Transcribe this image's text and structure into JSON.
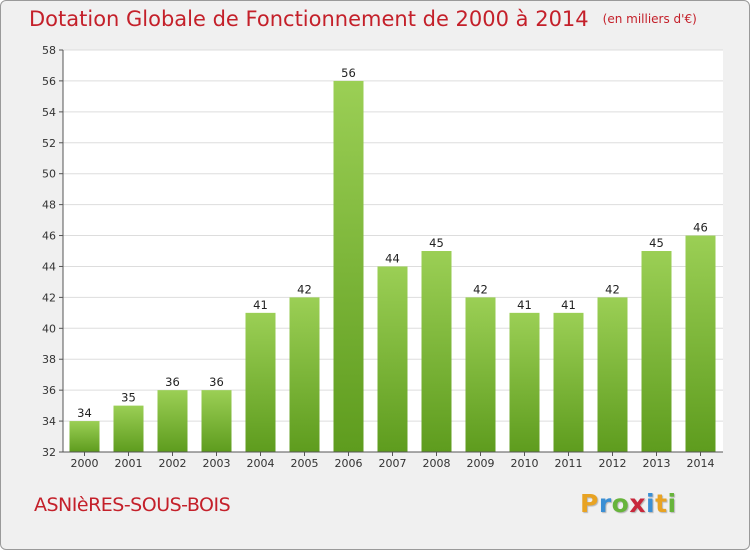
{
  "title": "Dotation Globale de Fonctionnement de 2000 à 2014",
  "subtitle": "(en milliers d'€)",
  "commune": "ASNIèRES-SOUS-BOIS",
  "logo": {
    "letters": [
      "P",
      "r",
      "o",
      "x",
      "i",
      "t",
      "i"
    ],
    "colors": [
      "#e8a323",
      "#3b8fd4",
      "#67b43b",
      "#c8283c",
      "#3b8fd4",
      "#e8a323",
      "#67b43b"
    ]
  },
  "colors": {
    "bar_light": "#9bcf55",
    "bar_dark": "#5e9c1e",
    "title": "#c4202a",
    "background": "#f0f0f0",
    "plot_background": "#ffffff"
  },
  "chart_data": {
    "type": "bar",
    "categories": [
      "2000",
      "2001",
      "2002",
      "2003",
      "2004",
      "2005",
      "2006",
      "2007",
      "2008",
      "2009",
      "2010",
      "2011",
      "2012",
      "2013",
      "2014"
    ],
    "values": [
      34,
      35,
      36,
      36,
      41,
      42,
      56,
      44,
      45,
      42,
      41,
      41,
      42,
      45,
      46
    ],
    "data_labels": [
      "34",
      "35",
      "36",
      "36",
      "41",
      "42",
      "56",
      "44",
      "45",
      "42",
      "41",
      "41",
      "42",
      "45",
      "46"
    ],
    "yticks": [
      "32",
      "34",
      "36",
      "38",
      "40",
      "42",
      "44",
      "46",
      "48",
      "50",
      "52",
      "54",
      "56",
      "58"
    ],
    "ylim": [
      32,
      58
    ],
    "grid": true,
    "legend": "none"
  }
}
